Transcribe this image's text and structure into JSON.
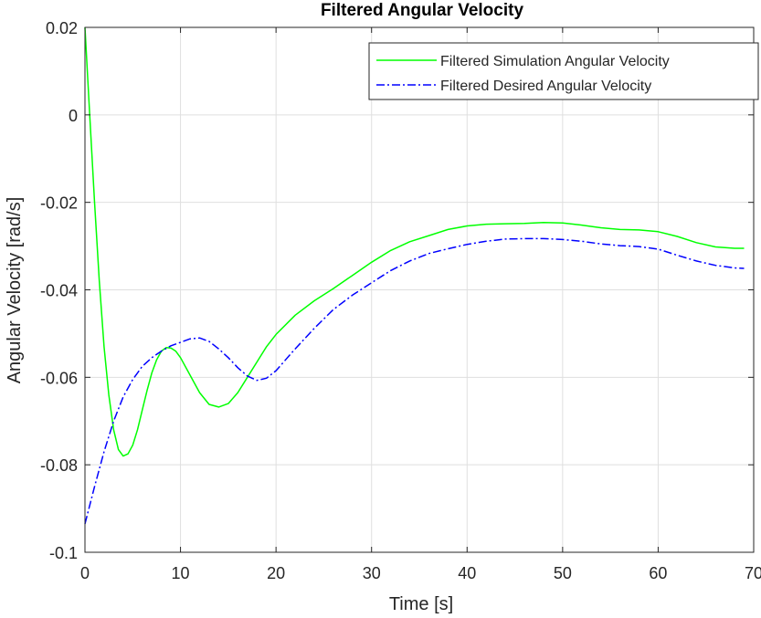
{
  "chart_data": {
    "type": "line",
    "title": "Filtered Angular Velocity",
    "xlabel": "Time [s]",
    "ylabel": "Angular Velocity [rad/s]",
    "xlim": [
      0,
      70
    ],
    "ylim": [
      -0.1,
      0.02
    ],
    "xticks": [
      0,
      10,
      20,
      30,
      40,
      50,
      60,
      70
    ],
    "yticks": [
      0.02,
      0,
      -0.02,
      -0.04,
      -0.06,
      -0.08,
      -0.1
    ],
    "xtick_labels": [
      "0",
      "10",
      "20",
      "30",
      "40",
      "50",
      "60",
      "70"
    ],
    "ytick_labels": [
      "0.02",
      "0",
      "-0.02",
      "-0.04",
      "-0.06",
      "-0.08",
      "-0.1"
    ],
    "grid": true,
    "legend_position": "top-right",
    "series": [
      {
        "name": "Filtered Simulation Angular Velocity",
        "color": "#00ff00",
        "style": "solid",
        "x": [
          0,
          0.5,
          1,
          1.5,
          2,
          2.5,
          3,
          3.5,
          4,
          4.5,
          5,
          5.5,
          6,
          6.5,
          7,
          7.5,
          8,
          8.5,
          9,
          9.5,
          10,
          11,
          12,
          13,
          14,
          15,
          16,
          17,
          18,
          19,
          20,
          22,
          24,
          26,
          28,
          30,
          32,
          34,
          36,
          38,
          40,
          42,
          44,
          46,
          48,
          50,
          52,
          54,
          56,
          58,
          60,
          62,
          64,
          66,
          68,
          69
        ],
        "y": [
          0.02,
          0.0,
          -0.02,
          -0.038,
          -0.053,
          -0.064,
          -0.072,
          -0.0765,
          -0.078,
          -0.0775,
          -0.0755,
          -0.072,
          -0.0675,
          -0.063,
          -0.059,
          -0.056,
          -0.054,
          -0.0532,
          -0.0533,
          -0.054,
          -0.0555,
          -0.0595,
          -0.0635,
          -0.0662,
          -0.0668,
          -0.066,
          -0.0635,
          -0.06,
          -0.0565,
          -0.053,
          -0.0502,
          -0.0458,
          -0.0425,
          -0.0397,
          -0.0367,
          -0.0337,
          -0.031,
          -0.029,
          -0.0276,
          -0.0262,
          -0.0254,
          -0.025,
          -0.0249,
          -0.0248,
          -0.0246,
          -0.0247,
          -0.0252,
          -0.0258,
          -0.0262,
          -0.0263,
          -0.0267,
          -0.0278,
          -0.0292,
          -0.0302,
          -0.0305,
          -0.0305
        ]
      },
      {
        "name": "Filtered Desired Angular Velocity",
        "color": "#0000ff",
        "style": "dashdot",
        "x": [
          0,
          1,
          2,
          3,
          4,
          5,
          6,
          7,
          8,
          9,
          10,
          11,
          12,
          13,
          14,
          15,
          16,
          17,
          18,
          19,
          20,
          22,
          24,
          26,
          28,
          30,
          32,
          34,
          36,
          38,
          40,
          42,
          44,
          46,
          48,
          50,
          52,
          54,
          56,
          58,
          60,
          62,
          64,
          66,
          68,
          69
        ],
        "y": [
          -0.0935,
          -0.085,
          -0.077,
          -0.07,
          -0.0645,
          -0.0605,
          -0.0575,
          -0.0555,
          -0.054,
          -0.0528,
          -0.052,
          -0.0512,
          -0.051,
          -0.0518,
          -0.0535,
          -0.0555,
          -0.0578,
          -0.0597,
          -0.0607,
          -0.0602,
          -0.0585,
          -0.0535,
          -0.0488,
          -0.0445,
          -0.0412,
          -0.0384,
          -0.0356,
          -0.0334,
          -0.0317,
          -0.0306,
          -0.0296,
          -0.0289,
          -0.0284,
          -0.0283,
          -0.0283,
          -0.0285,
          -0.0289,
          -0.0295,
          -0.0299,
          -0.0301,
          -0.0307,
          -0.0321,
          -0.0334,
          -0.0344,
          -0.035,
          -0.0351
        ]
      }
    ]
  }
}
